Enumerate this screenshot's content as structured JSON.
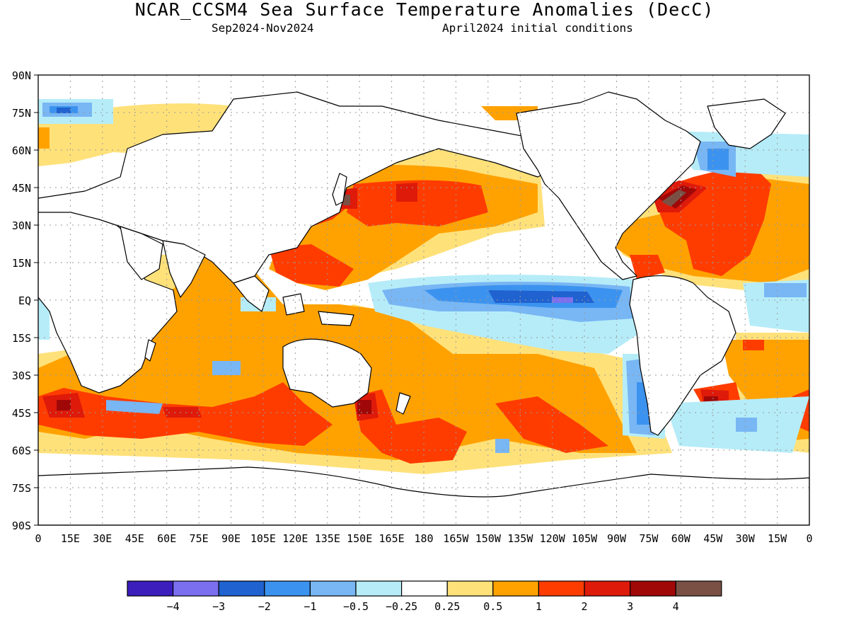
{
  "title": "NCAR_CCSM4 Sea Surface Temperature Anomalies (DecC)",
  "subtitle_period": "Sep2024-Nov2024",
  "subtitle_ic": "April2024 initial conditions",
  "lat_labels": [
    "90N",
    "75N",
    "60N",
    "45N",
    "30N",
    "15N",
    "EQ",
    "15S",
    "30S",
    "45S",
    "60S",
    "75S",
    "90S"
  ],
  "lon_labels": [
    "0",
    "15E",
    "30E",
    "45E",
    "60E",
    "75E",
    "90E",
    "105E",
    "120E",
    "135E",
    "150E",
    "165E",
    "180",
    "165W",
    "150W",
    "135W",
    "120W",
    "105W",
    "90W",
    "75W",
    "60W",
    "45W",
    "30W",
    "15W",
    "0"
  ],
  "colorbar": {
    "colors": [
      "#3b1ebc",
      "#7b6ff0",
      "#1f62d0",
      "#3c93ef",
      "#78b6f4",
      "#b5ecf8",
      "#ffffff",
      "#ffe17a",
      "#ffa200",
      "#ff3c00",
      "#de1a0a",
      "#a00808",
      "#7a5045"
    ],
    "labels": [
      "−4",
      "−3",
      "−2",
      "−1",
      "−0.5",
      "−0.25",
      "0.25",
      "0.5",
      "1",
      "2",
      "3",
      "4"
    ]
  },
  "land_color": "#ffffff",
  "coast_color": "#000000"
}
